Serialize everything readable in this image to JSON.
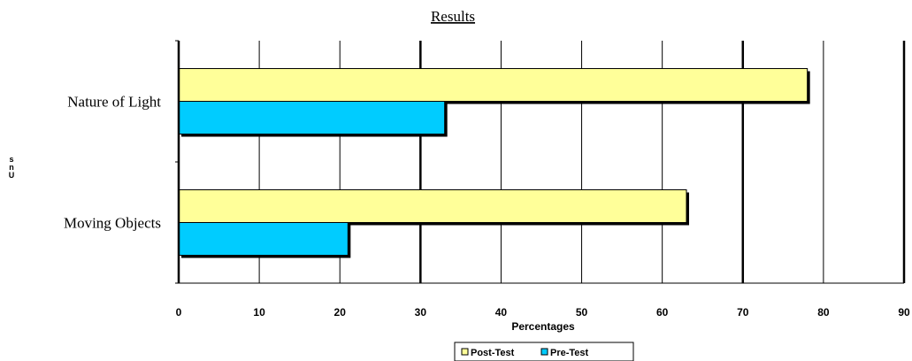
{
  "chart_data": {
    "type": "bar",
    "orientation": "horizontal",
    "title": "Results",
    "xlabel": "Percentages",
    "ylabel": "s\nn\nU",
    "categories": [
      "Nature of Light",
      "Moving Objects"
    ],
    "series": [
      {
        "name": "Post-Test",
        "values": [
          78,
          63
        ],
        "color": "#FFFF99"
      },
      {
        "name": "Pre-Test",
        "values": [
          33,
          21
        ],
        "color": "#00CCFF"
      }
    ],
    "xlim": [
      0,
      90
    ],
    "xticks": [
      "0",
      "10",
      "20",
      "30",
      "40",
      "50",
      "60",
      "70",
      "80",
      "90"
    ],
    "grid": true,
    "legend_position": "bottom"
  }
}
